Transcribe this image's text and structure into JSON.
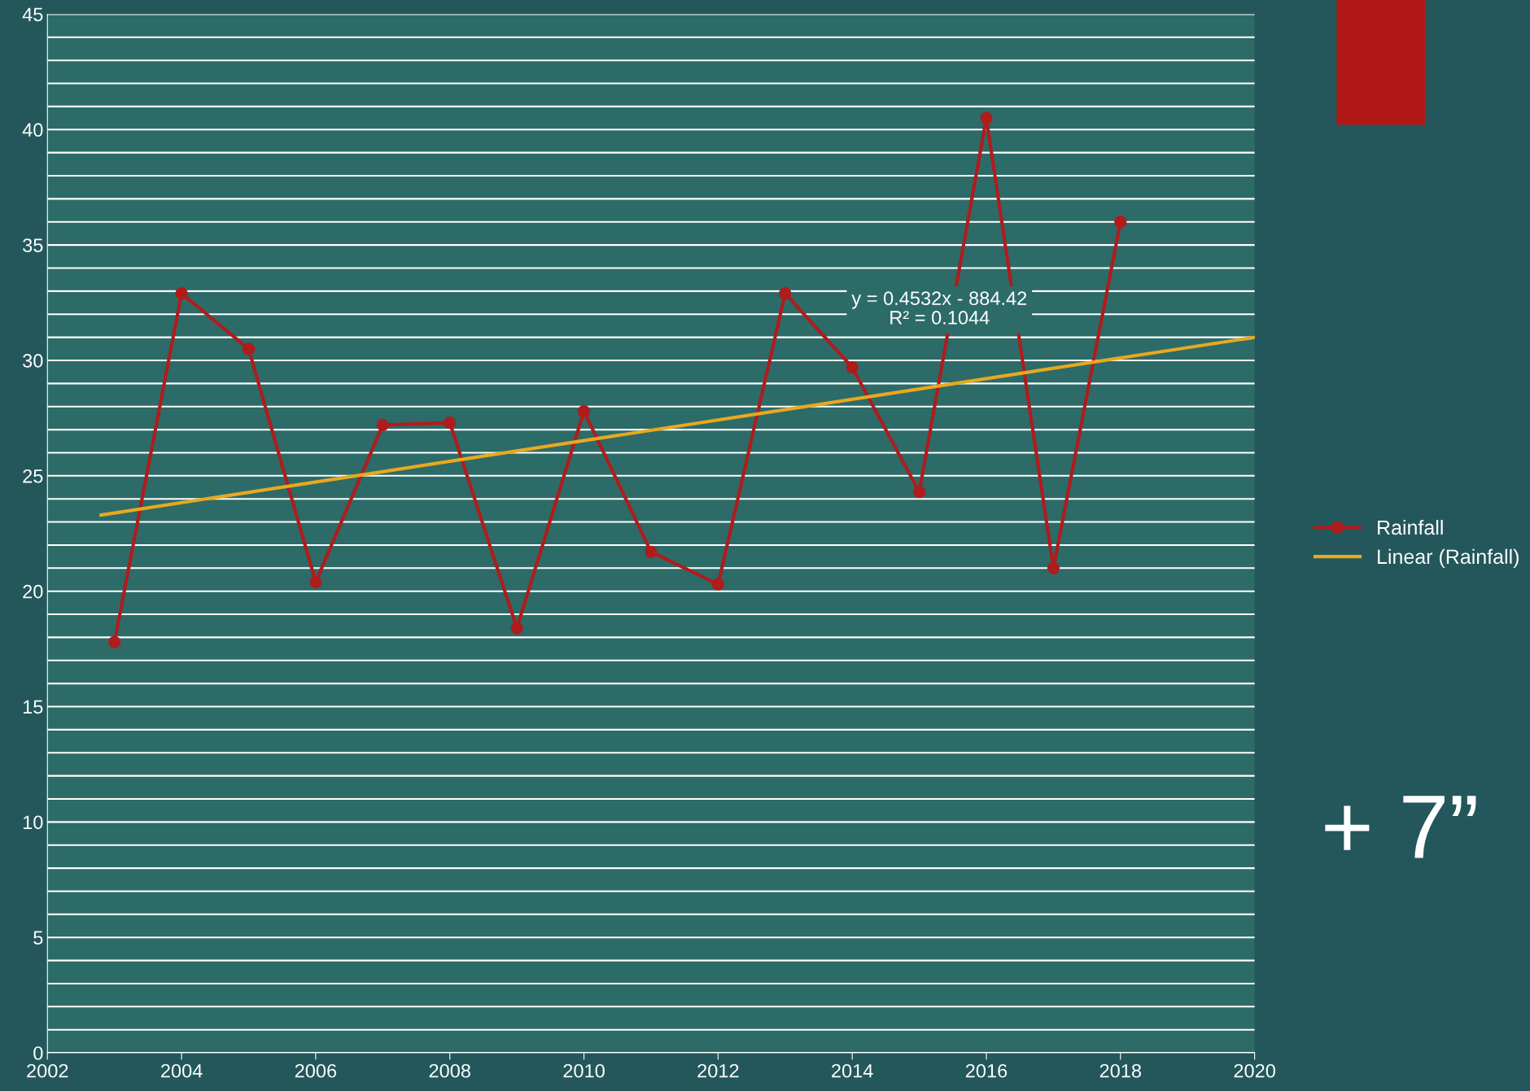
{
  "chart_data": {
    "type": "line",
    "x": [
      2003,
      2004,
      2005,
      2006,
      2007,
      2008,
      2009,
      2010,
      2011,
      2012,
      2013,
      2014,
      2015,
      2016,
      2017,
      2018
    ],
    "series": [
      {
        "name": "Rainfall",
        "color": "#b01c1c",
        "values": [
          17.8,
          32.9,
          30.5,
          20.4,
          27.2,
          27.3,
          18.4,
          27.8,
          21.7,
          20.3,
          32.9,
          29.7,
          24.3,
          40.5,
          21.0,
          36.0
        ],
        "marker": "circle"
      },
      {
        "name": "Linear (Rainfall)",
        "color": "#e8a820",
        "type": "line",
        "x": [
          2002.8,
          2020
        ],
        "values": [
          23.3,
          31.0
        ],
        "marker": "none"
      }
    ],
    "xlim": [
      2002,
      2020
    ],
    "xticks": [
      2002,
      2004,
      2006,
      2008,
      2010,
      2012,
      2014,
      2016,
      2018,
      2020
    ],
    "ylim": [
      0,
      45
    ],
    "yticks": [
      0,
      {
        "value": 1,
        "label": null
      },
      {
        "value": 2,
        "label": null
      },
      {
        "value": 3,
        "label": null
      },
      {
        "value": 4,
        "label": null
      },
      5,
      {
        "value": 6,
        "label": null
      },
      {
        "value": 7,
        "label": null
      },
      {
        "value": 8,
        "label": null
      },
      {
        "value": 9,
        "label": null
      },
      10,
      {
        "value": 11,
        "label": null
      },
      {
        "value": 12,
        "label": null
      },
      {
        "value": 13,
        "label": null
      },
      {
        "value": 14,
        "label": null
      },
      15,
      {
        "value": 16,
        "label": null
      },
      {
        "value": 17,
        "label": null
      },
      {
        "value": 18,
        "label": null
      },
      {
        "value": 19,
        "label": null
      },
      20,
      {
        "value": 21,
        "label": null
      },
      {
        "value": 22,
        "label": null
      },
      {
        "value": 23,
        "label": null
      },
      {
        "value": 24,
        "label": null
      },
      25,
      {
        "value": 26,
        "label": null
      },
      {
        "value": 27,
        "label": null
      },
      {
        "value": 28,
        "label": null
      },
      {
        "value": 29,
        "label": null
      },
      30,
      {
        "value": 31,
        "label": null
      },
      {
        "value": 32,
        "label": null
      },
      {
        "value": 33,
        "label": null
      },
      {
        "value": 34,
        "label": null
      },
      35,
      {
        "value": 36,
        "label": null
      },
      {
        "value": 37,
        "label": null
      },
      {
        "value": 38,
        "label": null
      },
      {
        "value": 39,
        "label": null
      },
      40,
      {
        "value": 41,
        "label": null
      },
      {
        "value": 42,
        "label": null
      },
      {
        "value": 43,
        "label": null
      },
      {
        "value": 44,
        "label": null
      },
      45
    ],
    "grid": "y",
    "legend": "right",
    "line_style": "solid",
    "annotations": [
      "y = 0.4532x - 884.42\nR² = 0.1044",
      "+ 7”"
    ]
  }
}
